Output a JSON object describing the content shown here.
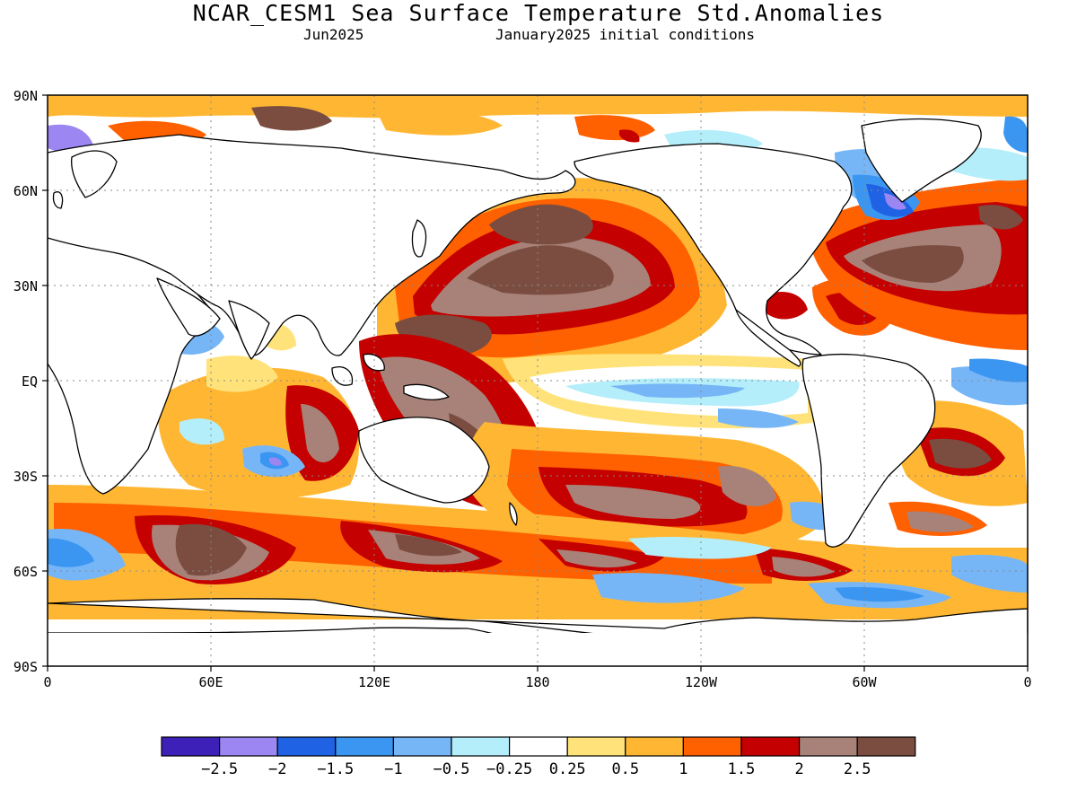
{
  "title": "NCAR_CESM1 Sea Surface Temperature Std.Anomalies",
  "subtitle_left": "Jun2025",
  "subtitle_right": "January2025 initial conditions",
  "lat_labels": [
    "90N",
    "60N",
    "30N",
    "EQ",
    "30S",
    "60S",
    "90S"
  ],
  "lon_labels": [
    "0",
    "60E",
    "120E",
    "180",
    "120W",
    "60W",
    "0"
  ],
  "colorbar": {
    "colors": [
      "#3d20b8",
      "#9b86f2",
      "#1f62e4",
      "#3b96f2",
      "#76b6f6",
      "#b4eefa",
      "#ffffff",
      "#ffe37a",
      "#ffb733",
      "#ff6000",
      "#c40000",
      "#a88278",
      "#7a4d40"
    ],
    "labels": [
      "-2.5",
      "-2",
      "-1.5",
      "-1",
      "-0.5",
      "-0.25",
      "0.25",
      "0.5",
      "1",
      "1.5",
      "2",
      "2.5"
    ]
  },
  "map_data": {
    "variable": "Sea Surface Temperature Std.Anomalies",
    "lat_range": [
      -90,
      90
    ],
    "lon_range": [
      0,
      360
    ]
  }
}
